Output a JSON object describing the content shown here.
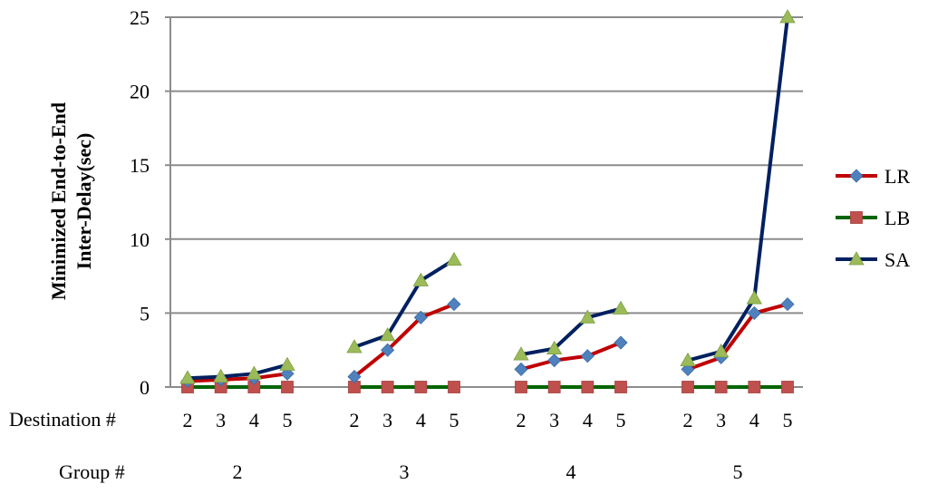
{
  "chart_data": {
    "type": "line",
    "ylabel_lines": [
      "Minimized  End-to-End",
      "Inter-Delay(sec)"
    ],
    "ylim": [
      0,
      25
    ],
    "yticks": [
      "0",
      "5",
      "10",
      "15",
      "20",
      "25"
    ],
    "grid": true,
    "legend_position": "right",
    "x_row_labels": {
      "destination": "Destination #",
      "group": "Group #"
    },
    "groups": [
      {
        "label": "2",
        "destinations": [
          "2",
          "3",
          "4",
          "5"
        ]
      },
      {
        "label": "3",
        "destinations": [
          "2",
          "3",
          "4",
          "5"
        ]
      },
      {
        "label": "4",
        "destinations": [
          "2",
          "3",
          "4",
          "5"
        ]
      },
      {
        "label": "5",
        "destinations": [
          "2",
          "3",
          "4",
          "5"
        ]
      }
    ],
    "series": [
      {
        "name": "LR",
        "line_color": "#C00000",
        "marker": "diamond",
        "marker_color": "#4F81BD",
        "values": [
          [
            0.4,
            0.5,
            0.6,
            0.9
          ],
          [
            0.7,
            2.5,
            4.7,
            5.6
          ],
          [
            1.2,
            1.8,
            2.1,
            3.0
          ],
          [
            1.2,
            2.0,
            5.0,
            5.6
          ]
        ]
      },
      {
        "name": "LB",
        "line_color": "#006400",
        "marker": "square",
        "marker_color": "#C0504D",
        "values": [
          [
            0,
            0,
            0,
            0
          ],
          [
            0,
            0,
            0,
            0
          ],
          [
            0,
            0,
            0,
            0
          ],
          [
            0,
            0,
            0,
            0
          ]
        ]
      },
      {
        "name": "SA",
        "line_color": "#002060",
        "marker": "triangle",
        "marker_color": "#9BBB59",
        "values": [
          [
            0.6,
            0.7,
            0.9,
            1.5
          ],
          [
            2.7,
            3.5,
            7.2,
            8.6
          ],
          [
            2.2,
            2.6,
            4.7,
            5.3
          ],
          [
            1.8,
            2.4,
            6.0,
            25.0
          ]
        ]
      }
    ]
  }
}
